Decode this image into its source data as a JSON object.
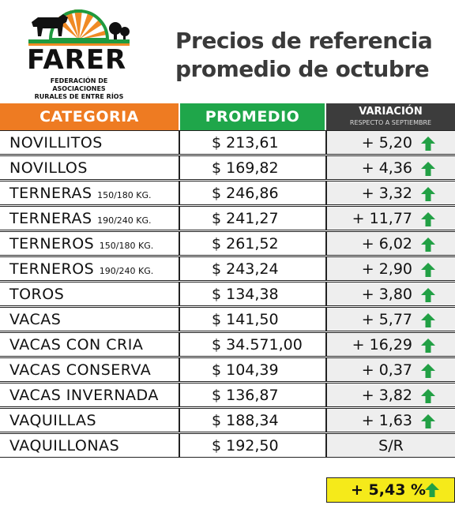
{
  "logo": {
    "wordmark": "FARER",
    "subtitle_line1": "FEDERACIÓN DE ASOCIACIONES",
    "subtitle_line2": "RURALES DE ENTRE RÍOS",
    "colors": {
      "green": "#1f9a3f",
      "orange": "#f08a24",
      "dark": "#111111"
    }
  },
  "title": {
    "line1": "Precios de referencia",
    "line2": "promedio de octubre"
  },
  "table": {
    "headers": {
      "category": "CATEGORIA",
      "average": "PROMEDIO",
      "variation": "VARIACIÓN",
      "variation_sub": "RESPECTO A  SEPTIEMBRE"
    },
    "header_colors": {
      "category": "#ee7b22",
      "average": "#1fa64a",
      "variation": "#3c3c3c"
    },
    "rows": [
      {
        "category": "NOVILLITOS",
        "suffix": "",
        "average": "$ 213,61",
        "variation": "+ 5,20",
        "arrow": "up-arrow-icon"
      },
      {
        "category": "NOVILLOS",
        "suffix": "",
        "average": "$ 169,82",
        "variation": "+ 4,36",
        "arrow": "up-arrow-icon"
      },
      {
        "category": "TERNERAS",
        "suffix": "150/180 KG.",
        "average": "$ 246,86",
        "variation": "+ 3,32",
        "arrow": "up-arrow-icon"
      },
      {
        "category": "TERNERAS",
        "suffix": "190/240 KG.",
        "average": "$ 241,27",
        "variation": "+ 11,77",
        "arrow": "up-arrow-icon"
      },
      {
        "category": "TERNEROS",
        "suffix": "150/180 KG.",
        "average": "$ 261,52",
        "variation": "+ 6,02",
        "arrow": "up-arrow-icon"
      },
      {
        "category": "TERNEROS",
        "suffix": "190/240 KG.",
        "average": "$ 243,24",
        "variation": "+ 2,90",
        "arrow": "up-arrow-icon"
      },
      {
        "category": "TOROS",
        "suffix": "",
        "average": "$ 134,38",
        "variation": "+ 3,80",
        "arrow": "up-arrow-icon"
      },
      {
        "category": "VACAS",
        "suffix": "",
        "average": "$ 141,50",
        "variation": "+ 5,77",
        "arrow": "up-arrow-icon"
      },
      {
        "category": "VACAS CON CRIA",
        "suffix": "",
        "average": "$ 34.571,00",
        "variation": "+ 16,29",
        "arrow": "up-arrow-icon"
      },
      {
        "category": "VACAS CONSERVA",
        "suffix": "",
        "average": "$ 104,39",
        "variation": "+ 0,37",
        "arrow": "up-arrow-icon"
      },
      {
        "category": "VACAS INVERNADA",
        "suffix": "",
        "average": "$ 136,87",
        "variation": "+ 3,82",
        "arrow": "up-arrow-icon"
      },
      {
        "category": "VAQUILLAS",
        "suffix": "",
        "average": "$ 188,34",
        "variation": "+ 1,63",
        "arrow": "up-arrow-icon"
      },
      {
        "category": "VAQUILLONAS",
        "suffix": "",
        "average": "$ 192,50",
        "variation": "S/R",
        "arrow": ""
      }
    ],
    "total": {
      "value": "+ 5,43 %",
      "arrow": "up-arrow-icon",
      "background": "#f5ea1a"
    },
    "arrow_color": "#22a045"
  }
}
